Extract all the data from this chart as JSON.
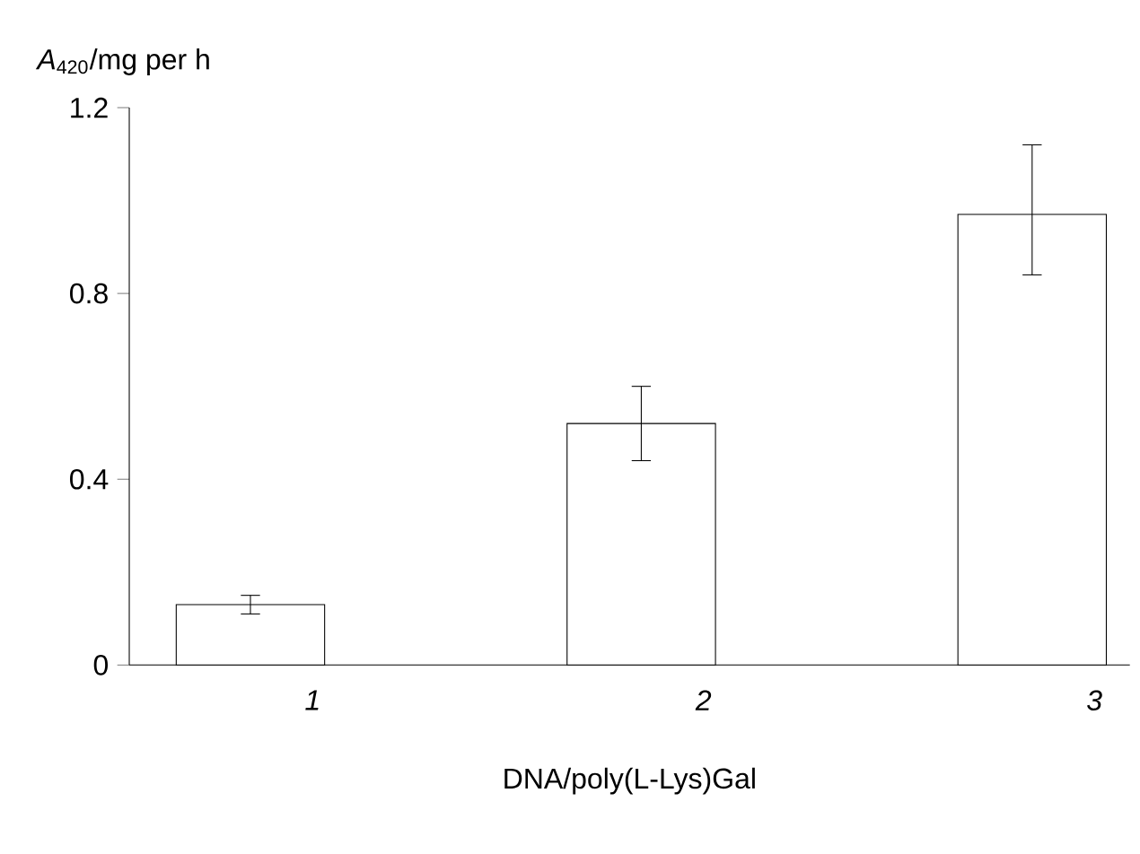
{
  "chart_data": {
    "type": "bar",
    "ylabel": "*A*$_{420}$/mg per h",
    "xlabel": "DNA/poly(L-Lys)Gal",
    "categories": [
      "1",
      "2",
      "3"
    ],
    "values": [
      0.13,
      0.52,
      0.97
    ],
    "errors": [
      [
        0.11,
        0.15
      ],
      [
        0.44,
        0.6
      ],
      [
        0.84,
        1.12
      ]
    ],
    "color": "#ffffff",
    "ylim": [
      0,
      1.2
    ],
    "yticks": [
      0,
      0.4,
      0.8,
      1.2
    ],
    "grid": false
  }
}
